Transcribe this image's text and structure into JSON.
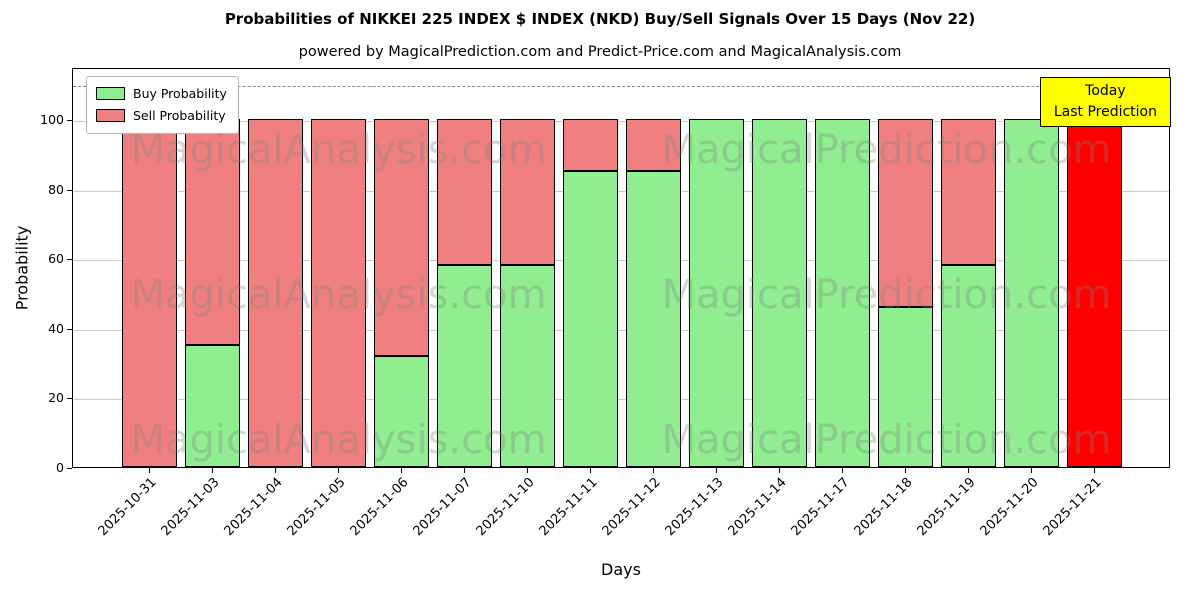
{
  "chart_data": {
    "type": "bar",
    "stacked": true,
    "title": "Probabilities of NIKKEI 225 INDEX $ INDEX (NKD) Buy/Sell Signals Over 15 Days (Nov 22)",
    "subtitle": "powered by MagicalPrediction.com and Predict-Price.com and MagicalAnalysis.com",
    "xlabel": "Days",
    "ylabel": "Probability",
    "ylim": [
      0,
      115
    ],
    "yticks": [
      0,
      20,
      40,
      60,
      80,
      100
    ],
    "dashed_line_y": 110,
    "grid": true,
    "categories": [
      "2025-10-31",
      "2025-11-03",
      "2025-11-04",
      "2025-11-05",
      "2025-11-06",
      "2025-11-07",
      "2025-11-10",
      "2025-11-11",
      "2025-11-12",
      "2025-11-13",
      "2025-11-14",
      "2025-11-17",
      "2025-11-18",
      "2025-11-19",
      "2025-11-20",
      "2025-11-21"
    ],
    "series": [
      {
        "name": "Buy Probability",
        "color": "#90ee90",
        "values": [
          0,
          35,
          0,
          0,
          32,
          58,
          58,
          85,
          85,
          100,
          100,
          100,
          46,
          58,
          100,
          0
        ]
      },
      {
        "name": "Sell Probability",
        "color": "#f08080",
        "values": [
          100,
          65,
          100,
          100,
          68,
          42,
          42,
          15,
          15,
          0,
          0,
          0,
          54,
          42,
          0,
          100
        ]
      }
    ],
    "special_bars": {
      "15": {
        "color": "#ff0000",
        "value": 100
      }
    },
    "legend": {
      "position": "top-left",
      "entries": [
        {
          "label": "Buy Probability",
          "color": "#90ee90"
        },
        {
          "label": "Sell Probability",
          "color": "#f08080"
        }
      ]
    },
    "annotation": {
      "lines": [
        "Today",
        "Last Prediction"
      ],
      "bg": "#ffff00"
    },
    "watermarks": [
      "MagicalAnalysis.com",
      "MagicalPrediction.com"
    ]
  }
}
